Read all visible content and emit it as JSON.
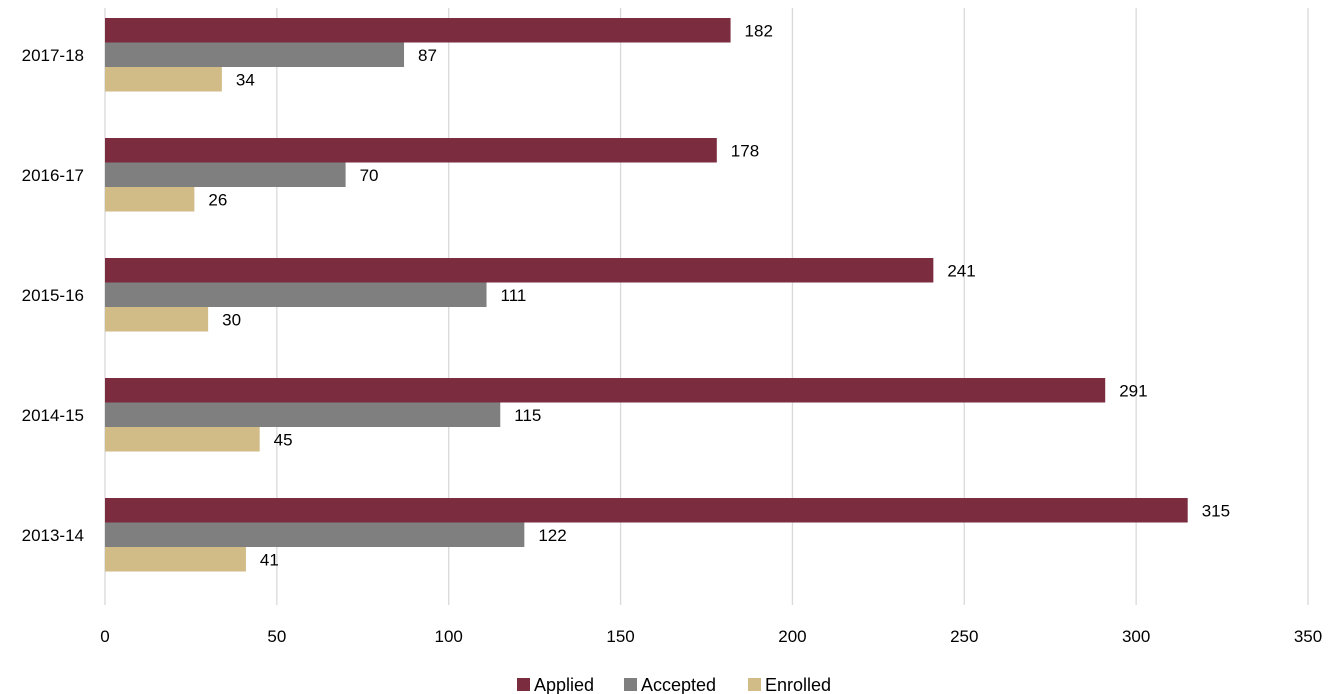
{
  "chart_data": {
    "type": "bar",
    "orientation": "horizontal",
    "categories": [
      "2017-18",
      "2016-17",
      "2015-16",
      "2014-15",
      "2013-14"
    ],
    "series": [
      {
        "name": "Applied",
        "color": "#7b2d3f",
        "values": [
          182,
          178,
          241,
          291,
          315
        ]
      },
      {
        "name": "Accepted",
        "color": "#7f7f7f",
        "values": [
          87,
          70,
          111,
          115,
          122
        ]
      },
      {
        "name": "Enrolled",
        "color": "#d1bb87",
        "values": [
          34,
          26,
          30,
          45,
          41
        ]
      }
    ],
    "x_ticks": [
      "0",
      "50",
      "100",
      "150",
      "200",
      "250",
      "300",
      "350"
    ],
    "xlim": [
      0,
      350
    ],
    "title": "",
    "xlabel": "",
    "ylabel": "",
    "grid": "vertical",
    "legend_position": "bottom"
  }
}
